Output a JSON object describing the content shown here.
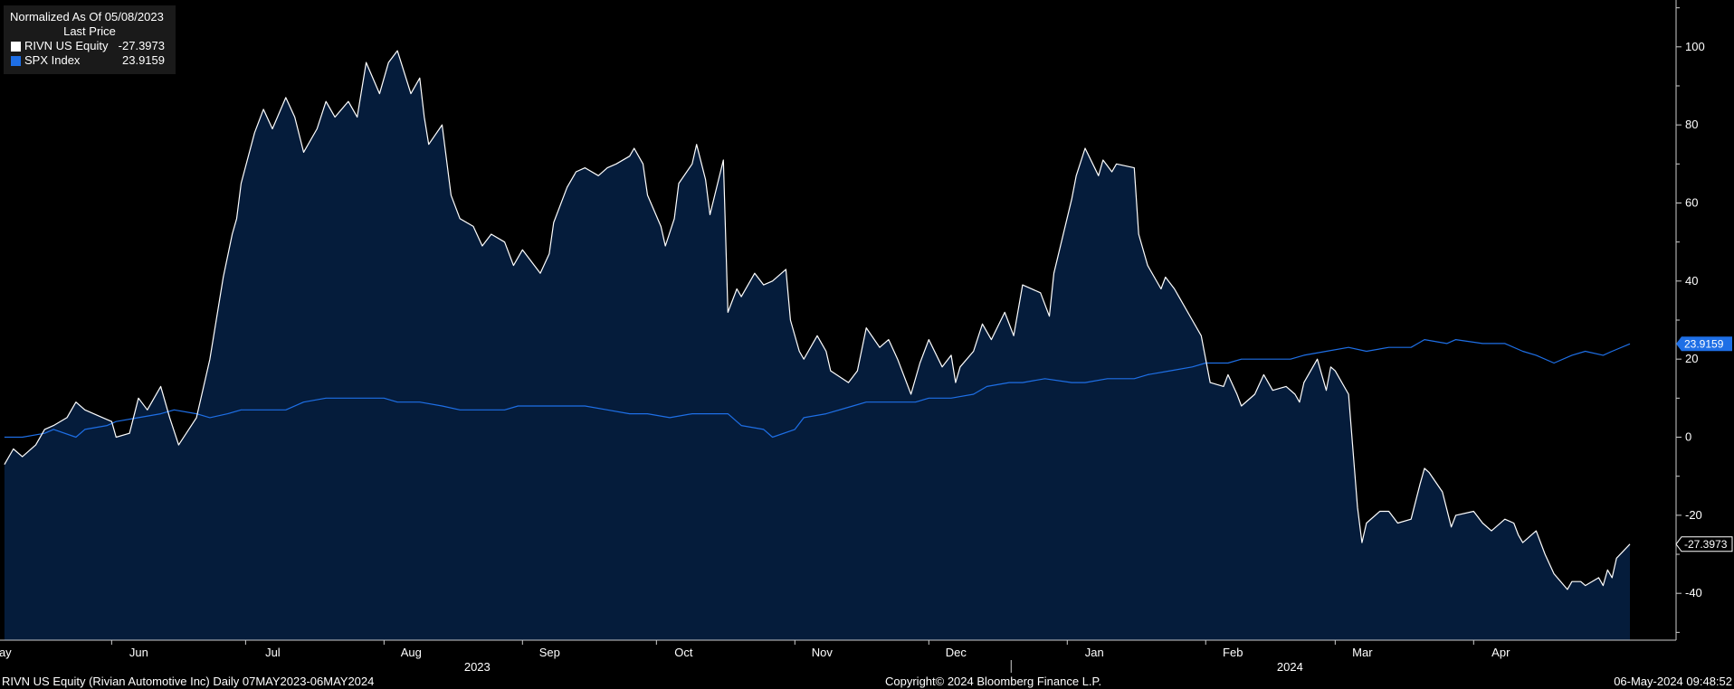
{
  "legend": {
    "title": "Normalized As Of 05/08/2023",
    "subtitle": "Last Price",
    "items": [
      {
        "label": "RIVN US Equity",
        "value": "-27.3973",
        "color": "#ffffff"
      },
      {
        "label": "SPX Index",
        "value": "23.9159",
        "color": "#1e6fe6"
      }
    ]
  },
  "footer": {
    "left": "RIVN US Equity (Rivian Automotive Inc)  Daily 07MAY2023-06MAY2024",
    "center": "Copyright© 2024 Bloomberg Finance L.P.",
    "right": "06-May-2024 09:48:52"
  },
  "colors": {
    "background": "#000000",
    "area_fill": "#051c3b",
    "rivn_line": "#ffffff",
    "spx_line": "#1e6fe6",
    "axis": "#cccccc"
  },
  "chart_data": {
    "type": "line",
    "title": "",
    "xlabel": "",
    "ylabel": "",
    "ylim": [
      -52,
      112
    ],
    "y_ticks": [
      100,
      80,
      60,
      40,
      20,
      0,
      -20,
      -40
    ],
    "x_ticks": [
      {
        "label": "May",
        "date": "2023-05-01"
      },
      {
        "label": "Jun",
        "date": "2023-06-01"
      },
      {
        "label": "Jul",
        "date": "2023-07-01"
      },
      {
        "label": "Aug",
        "date": "2023-08-01"
      },
      {
        "label": "Sep",
        "date": "2023-09-01"
      },
      {
        "label": "Oct",
        "date": "2023-10-01"
      },
      {
        "label": "Nov",
        "date": "2023-11-01"
      },
      {
        "label": "Dec",
        "date": "2023-12-01"
      },
      {
        "label": "Jan",
        "date": "2024-01-01"
      },
      {
        "label": "Feb",
        "date": "2024-02-01"
      },
      {
        "label": "Mar",
        "date": "2024-03-01"
      },
      {
        "label": "Apr",
        "date": "2024-04-01"
      }
    ],
    "year_labels": [
      {
        "label": "2023",
        "date": "2023-09-01"
      },
      {
        "label": "2024",
        "date": "2024-03-01"
      }
    ],
    "year_divider_date": "2024-01-01",
    "xlim": [
      "2023-05-07",
      "2024-05-06"
    ],
    "legend_position": "top-left",
    "grid": false,
    "series": [
      {
        "name": "RIVN US Equity",
        "last_value": "-27.3973",
        "area": true,
        "points": [
          [
            "2023-05-08",
            -7
          ],
          [
            "2023-05-10",
            -3
          ],
          [
            "2023-05-12",
            -5
          ],
          [
            "2023-05-15",
            -2
          ],
          [
            "2023-05-17",
            2
          ],
          [
            "2023-05-19",
            3
          ],
          [
            "2023-05-22",
            5
          ],
          [
            "2023-05-24",
            9
          ],
          [
            "2023-05-26",
            7
          ],
          [
            "2023-05-30",
            5
          ],
          [
            "2023-06-01",
            4
          ],
          [
            "2023-06-02",
            0
          ],
          [
            "2023-06-05",
            1
          ],
          [
            "2023-06-07",
            10
          ],
          [
            "2023-06-09",
            7
          ],
          [
            "2023-06-12",
            13
          ],
          [
            "2023-06-14",
            5
          ],
          [
            "2023-06-16",
            -2
          ],
          [
            "2023-06-20",
            5
          ],
          [
            "2023-06-22",
            15
          ],
          [
            "2023-06-23",
            20
          ],
          [
            "2023-06-26",
            41
          ],
          [
            "2023-06-28",
            52
          ],
          [
            "2023-06-29",
            56
          ],
          [
            "2023-06-30",
            65
          ],
          [
            "2023-07-03",
            78
          ],
          [
            "2023-07-05",
            84
          ],
          [
            "2023-07-07",
            79
          ],
          [
            "2023-07-10",
            87
          ],
          [
            "2023-07-12",
            82
          ],
          [
            "2023-07-14",
            73
          ],
          [
            "2023-07-17",
            79
          ],
          [
            "2023-07-19",
            86
          ],
          [
            "2023-07-21",
            82
          ],
          [
            "2023-07-24",
            86
          ],
          [
            "2023-07-26",
            82
          ],
          [
            "2023-07-28",
            96
          ],
          [
            "2023-07-31",
            88
          ],
          [
            "2023-08-02",
            96
          ],
          [
            "2023-08-04",
            99
          ],
          [
            "2023-08-07",
            88
          ],
          [
            "2023-08-09",
            92
          ],
          [
            "2023-08-10",
            82
          ],
          [
            "2023-08-11",
            75
          ],
          [
            "2023-08-14",
            80
          ],
          [
            "2023-08-16",
            62
          ],
          [
            "2023-08-18",
            56
          ],
          [
            "2023-08-21",
            54
          ],
          [
            "2023-08-23",
            49
          ],
          [
            "2023-08-25",
            52
          ],
          [
            "2023-08-28",
            50
          ],
          [
            "2023-08-30",
            44
          ],
          [
            "2023-09-01",
            48
          ],
          [
            "2023-09-05",
            42
          ],
          [
            "2023-09-07",
            47
          ],
          [
            "2023-09-08",
            55
          ],
          [
            "2023-09-11",
            64
          ],
          [
            "2023-09-13",
            68
          ],
          [
            "2023-09-15",
            69
          ],
          [
            "2023-09-18",
            67
          ],
          [
            "2023-09-20",
            69
          ],
          [
            "2023-09-22",
            70
          ],
          [
            "2023-09-25",
            72
          ],
          [
            "2023-09-26",
            74
          ],
          [
            "2023-09-28",
            70
          ],
          [
            "2023-09-29",
            62
          ],
          [
            "2023-10-02",
            54
          ],
          [
            "2023-10-03",
            49
          ],
          [
            "2023-10-05",
            56
          ],
          [
            "2023-10-06",
            65
          ],
          [
            "2023-10-09",
            70
          ],
          [
            "2023-10-10",
            75
          ],
          [
            "2023-10-12",
            66
          ],
          [
            "2023-10-13",
            57
          ],
          [
            "2023-10-16",
            71
          ],
          [
            "2023-10-17",
            32
          ],
          [
            "2023-10-19",
            38
          ],
          [
            "2023-10-20",
            36
          ],
          [
            "2023-10-23",
            42
          ],
          [
            "2023-10-25",
            39
          ],
          [
            "2023-10-27",
            40
          ],
          [
            "2023-10-30",
            43
          ],
          [
            "2023-10-31",
            30
          ],
          [
            "2023-11-02",
            22
          ],
          [
            "2023-11-03",
            20
          ],
          [
            "2023-11-06",
            26
          ],
          [
            "2023-11-08",
            22
          ],
          [
            "2023-11-09",
            17
          ],
          [
            "2023-11-13",
            14
          ],
          [
            "2023-11-15",
            17
          ],
          [
            "2023-11-17",
            28
          ],
          [
            "2023-11-20",
            23
          ],
          [
            "2023-11-22",
            25
          ],
          [
            "2023-11-24",
            20
          ],
          [
            "2023-11-27",
            11
          ],
          [
            "2023-11-29",
            19
          ],
          [
            "2023-12-01",
            25
          ],
          [
            "2023-12-04",
            18
          ],
          [
            "2023-12-06",
            21
          ],
          [
            "2023-12-07",
            14
          ],
          [
            "2023-12-08",
            18
          ],
          [
            "2023-12-11",
            22
          ],
          [
            "2023-12-13",
            29
          ],
          [
            "2023-12-15",
            25
          ],
          [
            "2023-12-18",
            32
          ],
          [
            "2023-12-20",
            26
          ],
          [
            "2023-12-22",
            39
          ],
          [
            "2023-12-26",
            37
          ],
          [
            "2023-12-28",
            31
          ],
          [
            "2023-12-29",
            42
          ],
          [
            "2024-01-02",
            61
          ],
          [
            "2024-01-03",
            67
          ],
          [
            "2024-01-05",
            74
          ],
          [
            "2024-01-08",
            67
          ],
          [
            "2024-01-09",
            71
          ],
          [
            "2024-01-11",
            68
          ],
          [
            "2024-01-12",
            70
          ],
          [
            "2024-01-16",
            69
          ],
          [
            "2024-01-17",
            52
          ],
          [
            "2024-01-19",
            44
          ],
          [
            "2024-01-22",
            38
          ],
          [
            "2024-01-23",
            41
          ],
          [
            "2024-01-25",
            38
          ],
          [
            "2024-01-26",
            36
          ],
          [
            "2024-01-29",
            30
          ],
          [
            "2024-01-31",
            26
          ],
          [
            "2024-02-02",
            14
          ],
          [
            "2024-02-05",
            13
          ],
          [
            "2024-02-06",
            16
          ],
          [
            "2024-02-08",
            11
          ],
          [
            "2024-02-09",
            8
          ],
          [
            "2024-02-12",
            11
          ],
          [
            "2024-02-14",
            16
          ],
          [
            "2024-02-16",
            12
          ],
          [
            "2024-02-19",
            13
          ],
          [
            "2024-02-21",
            11
          ],
          [
            "2024-02-22",
            9
          ],
          [
            "2024-02-23",
            14
          ],
          [
            "2024-02-26",
            20
          ],
          [
            "2024-02-27",
            16
          ],
          [
            "2024-02-28",
            12
          ],
          [
            "2024-02-29",
            18
          ],
          [
            "2024-03-01",
            17
          ],
          [
            "2024-03-04",
            11
          ],
          [
            "2024-03-06",
            -18
          ],
          [
            "2024-03-07",
            -27
          ],
          [
            "2024-03-08",
            -22
          ],
          [
            "2024-03-11",
            -19
          ],
          [
            "2024-03-13",
            -19
          ],
          [
            "2024-03-15",
            -22
          ],
          [
            "2024-03-18",
            -21
          ],
          [
            "2024-03-20",
            -12
          ],
          [
            "2024-03-21",
            -8
          ],
          [
            "2024-03-22",
            -9
          ],
          [
            "2024-03-25",
            -14
          ],
          [
            "2024-03-27",
            -23
          ],
          [
            "2024-03-28",
            -20
          ],
          [
            "2024-04-01",
            -19
          ],
          [
            "2024-04-03",
            -22
          ],
          [
            "2024-04-05",
            -24
          ],
          [
            "2024-04-08",
            -21
          ],
          [
            "2024-04-10",
            -22
          ],
          [
            "2024-04-11",
            -25
          ],
          [
            "2024-04-12",
            -27
          ],
          [
            "2024-04-15",
            -24
          ],
          [
            "2024-04-17",
            -30
          ],
          [
            "2024-04-19",
            -35
          ],
          [
            "2024-04-22",
            -39
          ],
          [
            "2024-04-23",
            -37
          ],
          [
            "2024-04-25",
            -37
          ],
          [
            "2024-04-26",
            -38
          ],
          [
            "2024-04-29",
            -36
          ],
          [
            "2024-04-30",
            -38
          ],
          [
            "2024-05-01",
            -34
          ],
          [
            "2024-05-02",
            -36
          ],
          [
            "2024-05-03",
            -31
          ],
          [
            "2024-05-06",
            -27.3973
          ]
        ]
      },
      {
        "name": "SPX Index",
        "last_value": "23.9159",
        "area": false,
        "points": [
          [
            "2023-05-08",
            0
          ],
          [
            "2023-05-12",
            0
          ],
          [
            "2023-05-17",
            1
          ],
          [
            "2023-05-19",
            2
          ],
          [
            "2023-05-24",
            0
          ],
          [
            "2023-05-26",
            2
          ],
          [
            "2023-05-31",
            3
          ],
          [
            "2023-06-02",
            4
          ],
          [
            "2023-06-07",
            5
          ],
          [
            "2023-06-12",
            6
          ],
          [
            "2023-06-15",
            7
          ],
          [
            "2023-06-20",
            6
          ],
          [
            "2023-06-23",
            5
          ],
          [
            "2023-06-27",
            6
          ],
          [
            "2023-06-30",
            7
          ],
          [
            "2023-07-05",
            7
          ],
          [
            "2023-07-10",
            7
          ],
          [
            "2023-07-14",
            9
          ],
          [
            "2023-07-19",
            10
          ],
          [
            "2023-07-24",
            10
          ],
          [
            "2023-07-28",
            10
          ],
          [
            "2023-08-01",
            10
          ],
          [
            "2023-08-04",
            9
          ],
          [
            "2023-08-09",
            9
          ],
          [
            "2023-08-14",
            8
          ],
          [
            "2023-08-18",
            7
          ],
          [
            "2023-08-23",
            7
          ],
          [
            "2023-08-28",
            7
          ],
          [
            "2023-08-31",
            8
          ],
          [
            "2023-09-06",
            8
          ],
          [
            "2023-09-11",
            8
          ],
          [
            "2023-09-15",
            8
          ],
          [
            "2023-09-20",
            7
          ],
          [
            "2023-09-25",
            6
          ],
          [
            "2023-09-29",
            6
          ],
          [
            "2023-10-04",
            5
          ],
          [
            "2023-10-09",
            6
          ],
          [
            "2023-10-12",
            6
          ],
          [
            "2023-10-17",
            6
          ],
          [
            "2023-10-20",
            3
          ],
          [
            "2023-10-25",
            2
          ],
          [
            "2023-10-27",
            0
          ],
          [
            "2023-11-01",
            2
          ],
          [
            "2023-11-03",
            5
          ],
          [
            "2023-11-08",
            6
          ],
          [
            "2023-11-14",
            8
          ],
          [
            "2023-11-17",
            9
          ],
          [
            "2023-11-22",
            9
          ],
          [
            "2023-11-28",
            9
          ],
          [
            "2023-12-01",
            10
          ],
          [
            "2023-12-06",
            10
          ],
          [
            "2023-12-11",
            11
          ],
          [
            "2023-12-14",
            13
          ],
          [
            "2023-12-19",
            14
          ],
          [
            "2023-12-22",
            14
          ],
          [
            "2023-12-27",
            15
          ],
          [
            "2024-01-02",
            14
          ],
          [
            "2024-01-05",
            14
          ],
          [
            "2024-01-10",
            15
          ],
          [
            "2024-01-16",
            15
          ],
          [
            "2024-01-19",
            16
          ],
          [
            "2024-01-24",
            17
          ],
          [
            "2024-01-29",
            18
          ],
          [
            "2024-02-01",
            19
          ],
          [
            "2024-02-06",
            19
          ],
          [
            "2024-02-09",
            20
          ],
          [
            "2024-02-14",
            20
          ],
          [
            "2024-02-20",
            20
          ],
          [
            "2024-02-23",
            21
          ],
          [
            "2024-02-28",
            22
          ],
          [
            "2024-03-04",
            23
          ],
          [
            "2024-03-08",
            22
          ],
          [
            "2024-03-13",
            23
          ],
          [
            "2024-03-18",
            23
          ],
          [
            "2024-03-21",
            25
          ],
          [
            "2024-03-26",
            24
          ],
          [
            "2024-03-28",
            25
          ],
          [
            "2024-04-03",
            24
          ],
          [
            "2024-04-08",
            24
          ],
          [
            "2024-04-12",
            22
          ],
          [
            "2024-04-15",
            21
          ],
          [
            "2024-04-19",
            19
          ],
          [
            "2024-04-23",
            21
          ],
          [
            "2024-04-26",
            22
          ],
          [
            "2024-04-30",
            21
          ],
          [
            "2024-05-02",
            22
          ],
          [
            "2024-05-06",
            23.9159
          ]
        ]
      }
    ]
  }
}
